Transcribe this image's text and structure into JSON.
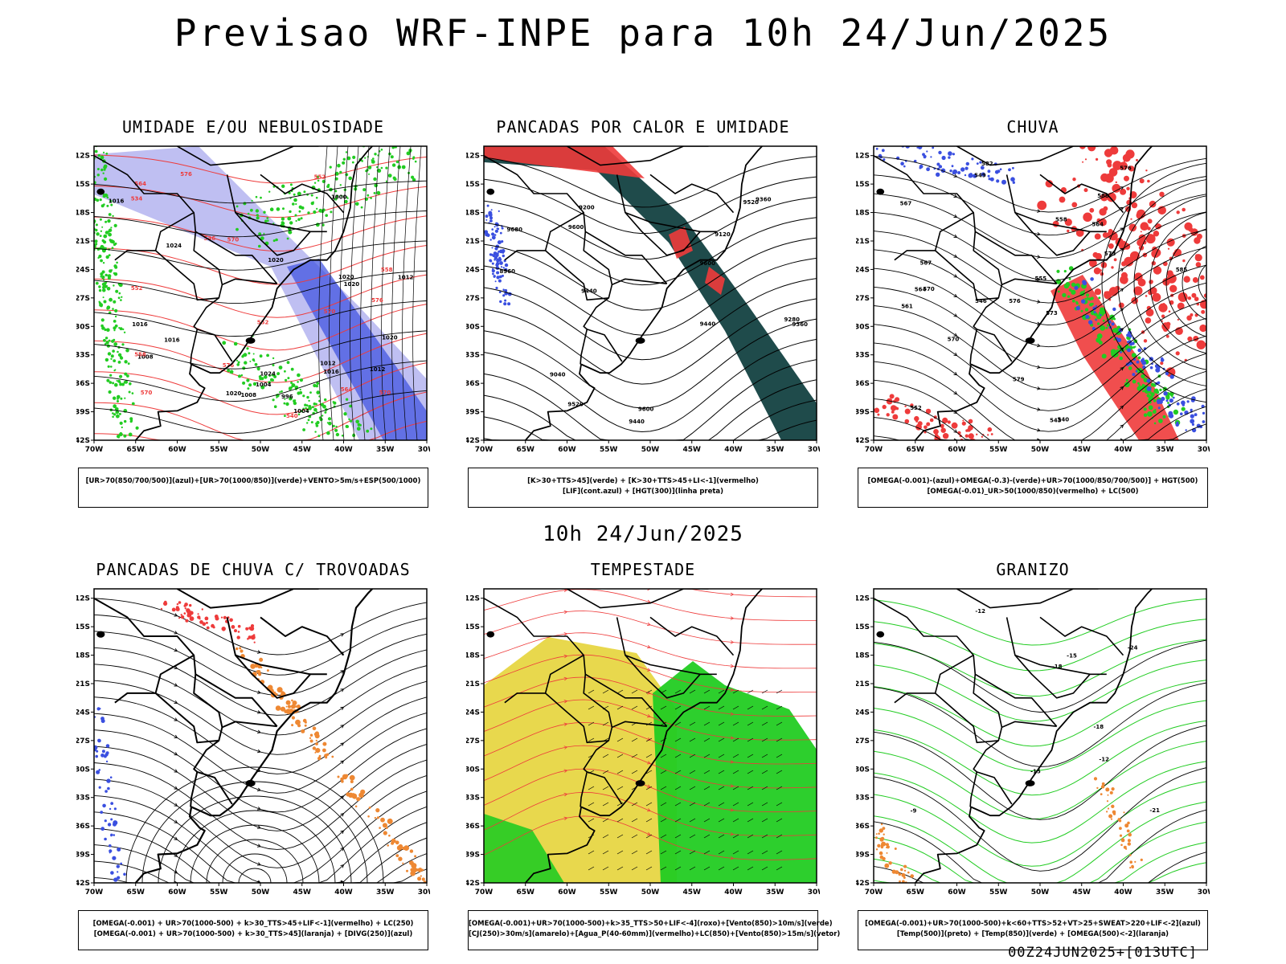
{
  "page": {
    "title": "Previsao WRF-INPE  para 10h 24/Jun/2025",
    "mid_time": "10h 24/Jun/2025",
    "footer": "00Z24JUN2025+[013UTC]"
  },
  "colors": {
    "blue": "#3a4fe0",
    "light_blue": "#a9a9ee",
    "green": "#22cc22",
    "red": "#ee3b3b",
    "dark_teal": "#1f4b4b",
    "orange": "#ee8833",
    "yellow": "#e6d43a",
    "magenta": "#cc33cc"
  },
  "chart_data": [
    {
      "type": "map",
      "title": "UMIDADE E/OU NEBULOSIDADE",
      "legend": [
        "[UR>70(850/700/500)](azul)+[UR>70(1000/850)](verde)+VENTO>5m/s+ESP(500/1000)"
      ],
      "xticks": [
        "70W",
        "65W",
        "60W",
        "55W",
        "50W",
        "45W",
        "40W",
        "35W",
        "30W"
      ],
      "yticks": [
        "12S",
        "15S",
        "18S",
        "21S",
        "24S",
        "27S",
        "30S",
        "33S",
        "36S",
        "39S",
        "42S"
      ],
      "contour_labels": [
        "1020",
        "1024",
        "1020",
        "1016",
        "1012",
        "1008",
        "1004",
        "1016",
        "1020",
        "1024",
        "1016",
        "1012",
        "1008",
        "1004",
        "1000",
        "996",
        "1012",
        "1016",
        "1020",
        "1020"
      ],
      "red_labels": [
        "570",
        "576",
        "570",
        "576",
        "570",
        "564",
        "558",
        "552",
        "546",
        "540",
        "534",
        "552",
        "564",
        "570",
        "576",
        "558",
        "552"
      ]
    },
    {
      "type": "map",
      "title": "PANCADAS POR CALOR E UMIDADE",
      "legend": [
        "[K>30+TTS>45](verde) + [K>30+TTS>45+LI<-1](vermelho)",
        "[LIF](cont.azul) + [HGT(300)](linha preta)"
      ],
      "xticks": [
        "70W",
        "65W",
        "60W",
        "55W",
        "50W",
        "45W",
        "40W",
        "35W",
        "30W"
      ],
      "yticks": [
        "12S",
        "15S",
        "18S",
        "21S",
        "24S",
        "27S",
        "30S",
        "33S",
        "36S",
        "39S",
        "42S"
      ],
      "contour_labels": [
        "9680",
        "9600",
        "9600",
        "9600",
        "9520",
        "9440",
        "9440",
        "9440",
        "9360",
        "9360",
        "9280",
        "9200",
        "9120",
        "9040",
        "8960",
        "9520"
      ]
    },
    {
      "type": "map",
      "title": "CHUVA",
      "legend": [
        "[OMEGA(-0.001)-(azul)+OMEGA(-0.3)-(verde)+UR>70(1000/850/700/500)] + HGT(500)",
        "[OMEGA(-0.01)_UR>50(1000/850)(vermelho) + LC(500)"
      ],
      "xticks": [
        "70W",
        "65W",
        "60W",
        "55W",
        "50W",
        "45W",
        "40W",
        "35W",
        "30W"
      ],
      "yticks": [
        "12S",
        "15S",
        "18S",
        "21S",
        "24S",
        "27S",
        "30S",
        "33S",
        "36S",
        "39S",
        "42S"
      ],
      "contour_labels": [
        "582",
        "588",
        "585",
        "576",
        "573",
        "570",
        "567",
        "564",
        "561",
        "558",
        "555",
        "552",
        "549",
        "546",
        "543",
        "540",
        "579",
        "576",
        "573",
        "570",
        "567",
        "564"
      ]
    },
    {
      "type": "map",
      "title": "PANCADAS DE CHUVA C/ TROVOADAS",
      "legend": [
        "[OMEGA(-0.001) + UR>70(1000-500) + k>30_TTS>45+LIF<-1](vermelho) + LC(250)",
        "[OMEGA(-0.001) + UR>70(1000-500) + k>30_TTS>45](laranja) + [DIVG(250)](azul)"
      ],
      "xticks": [
        "70W",
        "65W",
        "60W",
        "55W",
        "50W",
        "45W",
        "40W",
        "35W",
        "30W"
      ],
      "yticks": [
        "12S",
        "15S",
        "18S",
        "21S",
        "24S",
        "27S",
        "30S",
        "33S",
        "36S",
        "39S",
        "42S"
      ],
      "contour_labels": []
    },
    {
      "type": "map",
      "title": "TEMPESTADE",
      "legend": [
        "[OMEGA(-0.001)+UR>70(1000-500)+k>35_TTS>50+LIF<-4](roxo)+[Vento(850)>10m/s](verde)",
        "[CJ(250)>30m/s](amarelo)+[Agua_P(40-60mm)](vermelho)+LC(850)+[Vento(850)>15m/s](vetor)"
      ],
      "xticks": [
        "70W",
        "65W",
        "60W",
        "55W",
        "50W",
        "45W",
        "40W",
        "35W",
        "30W"
      ],
      "yticks": [
        "12S",
        "15S",
        "18S",
        "21S",
        "24S",
        "27S",
        "30S",
        "33S",
        "36S",
        "39S",
        "42S"
      ],
      "contour_labels": []
    },
    {
      "type": "map",
      "title": "GRANIZO",
      "legend": [
        "[OMEGA(-0.001)+UR>70(1000-500)+k<60+TTS>52+VT>25+SWEAT>220+LIF<-2](azul)",
        "[Temp(500)](preto) + [Temp(850)](verde) + [OMEGA(500)<-2](laranja)"
      ],
      "xticks": [
        "70W",
        "65W",
        "60W",
        "55W",
        "50W",
        "45W",
        "40W",
        "35W",
        "30W"
      ],
      "yticks": [
        "12S",
        "15S",
        "18S",
        "21S",
        "24S",
        "27S",
        "30S",
        "33S",
        "36S",
        "39S",
        "42S"
      ],
      "contour_labels": [
        "-9",
        "-12",
        "-15",
        "-18",
        "-21",
        "-24",
        "-12",
        "-15",
        "-18"
      ]
    }
  ]
}
